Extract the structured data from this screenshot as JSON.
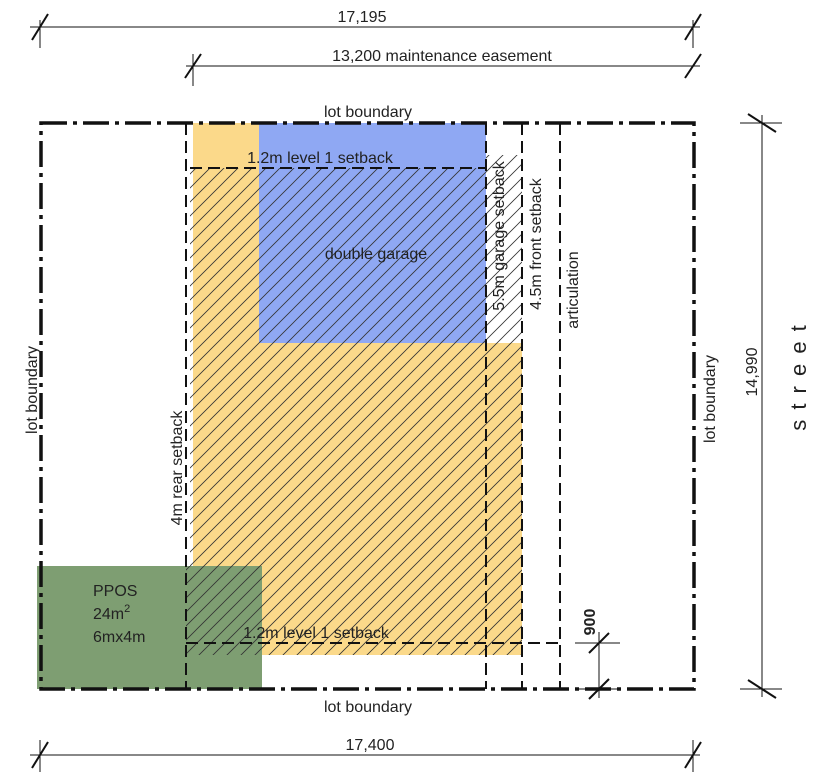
{
  "dimensions": {
    "top_width": "17,195",
    "easement": "13,200 maintenance easement",
    "right_depth": "14,990",
    "bottom_width": "17,400",
    "articulation_gap": "900"
  },
  "labels": {
    "lot_boundary_top": "lot boundary",
    "lot_boundary_bottom": "lot boundary",
    "lot_boundary_left": "lot boundary",
    "lot_boundary_right": "lot boundary",
    "level1_setback_top": "1.2m level 1 setback",
    "level1_setback_bottom": "1.2m level 1 setback",
    "garage": "double garage",
    "garage_setback": "5.5m garage setback",
    "front_setback": "4.5m front setback",
    "articulation": "articulation",
    "rear_setback": "4m rear setback",
    "ppos_title": "PPOS",
    "ppos_area": "24m",
    "ppos_area_sup": "2",
    "ppos_size": "6mx4m",
    "street": "s t r e e t"
  },
  "colors": {
    "buildable": "#fbd98a",
    "garage": "#8fa8f3",
    "ppos": "#7e9e72",
    "line": "#111111"
  }
}
